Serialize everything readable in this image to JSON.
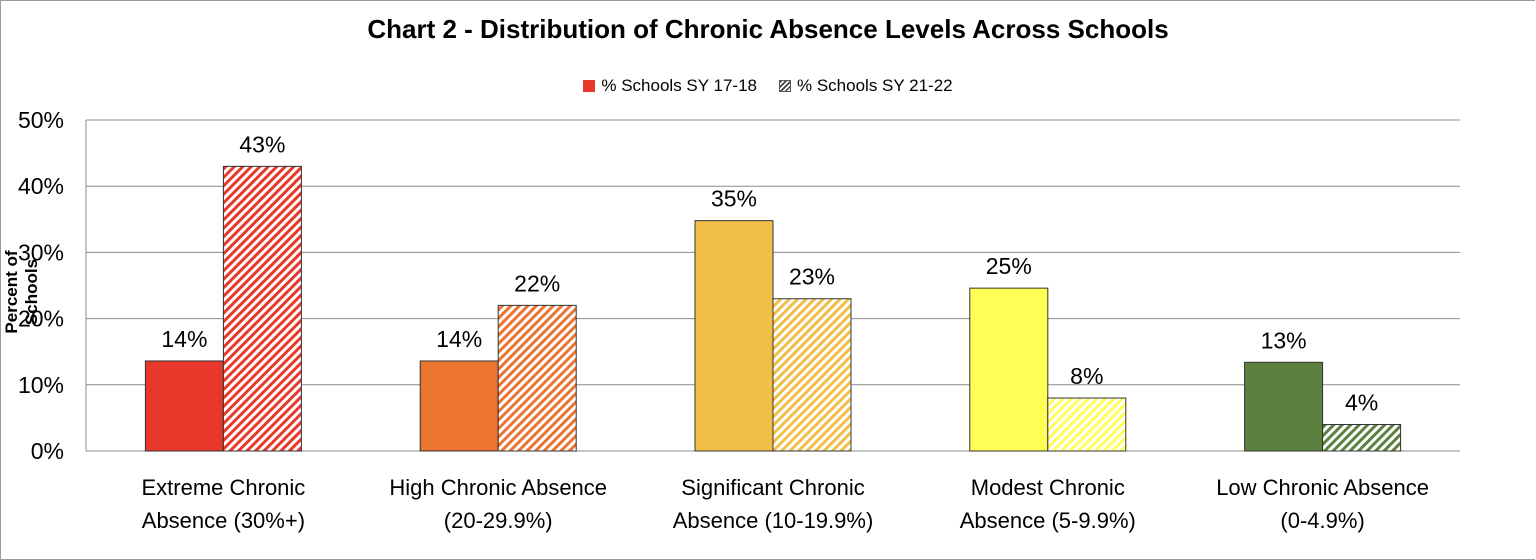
{
  "chart_data": {
    "type": "bar",
    "title": "Chart 2 - Distribution of Chronic Absence Levels Across Schools",
    "ylabel": "Percent of Schools",
    "ylim": [
      0,
      50
    ],
    "yticks": [
      "0%",
      "10%",
      "20%",
      "30%",
      "40%",
      "50%"
    ],
    "grid": true,
    "legend_position": "top-center",
    "categories": [
      [
        "Extreme Chronic",
        "Absence (30%+)"
      ],
      [
        "High Chronic Absence",
        "(20-29.9%)"
      ],
      [
        "Significant Chronic",
        "Absence (10-19.9%)"
      ],
      [
        "Modest Chronic",
        "Absence (5-9.9%)"
      ],
      [
        "Low Chronic Absence",
        "(0-4.9%)"
      ]
    ],
    "category_colors": [
      "#e8382b",
      "#ec7431",
      "#f2bf46",
      "#ffff55",
      "#5b813f"
    ],
    "series": [
      {
        "name": "% Schools SY 17-18",
        "values": [
          13.6,
          13.6,
          34.8,
          24.6,
          13.4
        ],
        "labels": [
          "14%",
          "14%",
          "35%",
          "25%",
          "13%"
        ],
        "pattern": "solid"
      },
      {
        "name": "% Schools SY 21-22",
        "values": [
          43.0,
          22.0,
          23.0,
          8.0,
          4.0
        ],
        "labels": [
          "43%",
          "22%",
          "23%",
          "8%",
          "4%"
        ],
        "pattern": "hatched"
      }
    ]
  }
}
